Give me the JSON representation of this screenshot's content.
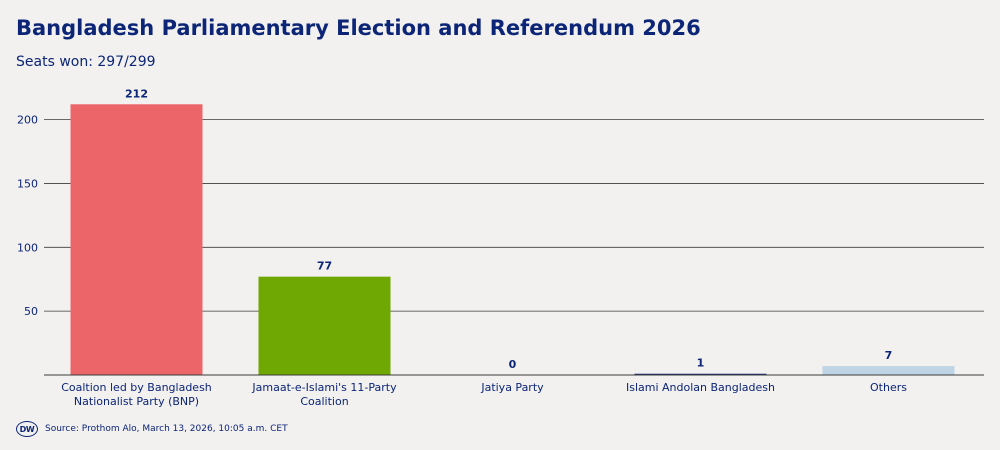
{
  "header": {
    "title": "Bangladesh Parliamentary Election and Referendum 2026",
    "subtitle": "Seats won: 297/299"
  },
  "footer": {
    "logo_text": "DW",
    "source": "Source: Prothom Alo, March 13, 2026, 10:05 a.m. CET"
  },
  "chart_data": {
    "type": "bar",
    "title": "Bangladesh Parliamentary Election and Referendum 2026",
    "subtitle": "Seats won: 297/299",
    "xlabel": "",
    "ylabel": "",
    "ylim": [
      0,
      240
    ],
    "yticks": [
      50,
      100,
      150,
      200
    ],
    "grid": true,
    "categories": [
      [
        "Coaltion led by Bangladesh",
        "Nationalist Party (BNP)"
      ],
      [
        "Jamaat-e-Islami's 11-Party",
        "Coalition"
      ],
      [
        "Jatiya Party"
      ],
      [
        "Islami Andolan Bangladesh"
      ],
      [
        "Others"
      ]
    ],
    "values": [
      212,
      77,
      0,
      1,
      7
    ],
    "colors": [
      "#ec6669",
      "#6fa802",
      "#1c2e7b",
      "#1c2e7b",
      "#bfd5e5"
    ]
  }
}
